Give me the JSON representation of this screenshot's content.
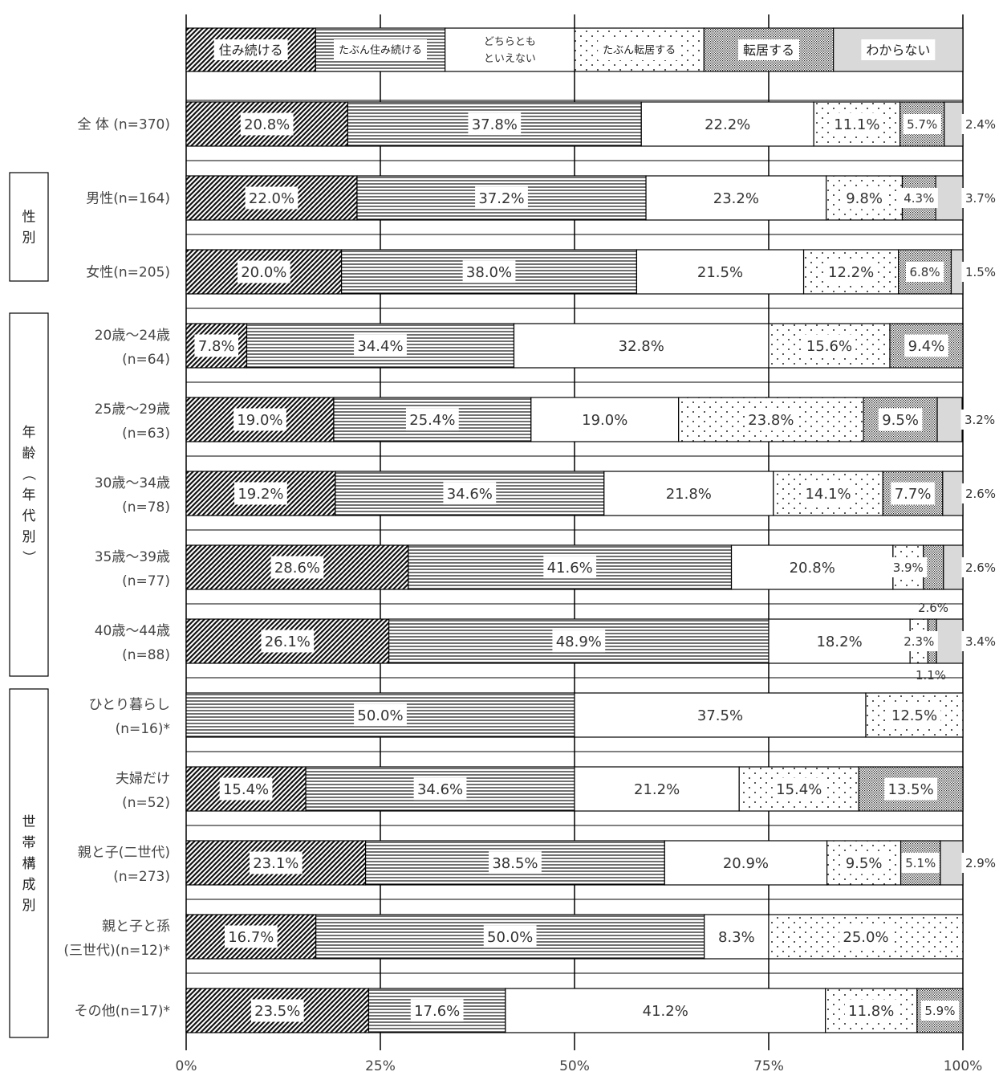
{
  "chart_data": {
    "type": "bar",
    "stacked": true,
    "orientation": "horizontal",
    "legend_placement": "top",
    "xlim": [
      0,
      100
    ],
    "x_ticks": [
      "0%",
      "25%",
      "50%",
      "75%",
      "100%"
    ],
    "legend": [
      {
        "name": "住み続ける",
        "pattern": "diagonal"
      },
      {
        "name": "たぶん住み続ける",
        "pattern": "horizontal"
      },
      {
        "name": "どちらとも\nといえない",
        "pattern": "blank"
      },
      {
        "name": "たぶん転居する",
        "pattern": "dots"
      },
      {
        "name": "転居する",
        "pattern": "dense"
      },
      {
        "name": "わからない",
        "pattern": "gray"
      }
    ],
    "groups": [
      {
        "label": "性別"
      },
      {
        "label": "年齢（年代別）"
      },
      {
        "label": "世帯構成別"
      }
    ],
    "rows": [
      {
        "label": [
          "全 体 (n=370)"
        ],
        "values": [
          20.8,
          37.8,
          22.2,
          11.1,
          5.7,
          2.4
        ],
        "labels": [
          "20.8%",
          "37.8%",
          "22.2%",
          "11.1%",
          "5.7%",
          "2.4%"
        ]
      },
      {
        "label": [
          "男性(n=164)"
        ],
        "values": [
          22.0,
          37.2,
          23.2,
          9.8,
          4.3,
          3.7
        ],
        "labels": [
          "22.0%",
          "37.2%",
          "23.2%",
          "9.8%",
          "4.3%",
          "3.7%"
        ]
      },
      {
        "label": [
          "女性(n=205)"
        ],
        "values": [
          20.0,
          38.0,
          21.5,
          12.2,
          6.8,
          1.5
        ],
        "labels": [
          "20.0%",
          "38.0%",
          "21.5%",
          "12.2%",
          "6.8%",
          "1.5%"
        ]
      },
      {
        "label": [
          "20歳～24歳",
          "(n=64)"
        ],
        "values": [
          7.8,
          34.4,
          32.8,
          15.6,
          9.4,
          0
        ],
        "labels": [
          "7.8%",
          "34.4%",
          "32.8%",
          "15.6%",
          "9.4%",
          ""
        ]
      },
      {
        "label": [
          "25歳～29歳",
          "(n=63)"
        ],
        "values": [
          19.0,
          25.4,
          19.0,
          23.8,
          9.5,
          3.2
        ],
        "labels": [
          "19.0%",
          "25.4%",
          "19.0%",
          "23.8%",
          "9.5%",
          "3.2%"
        ]
      },
      {
        "label": [
          "30歳～34歳",
          "(n=78)"
        ],
        "values": [
          19.2,
          34.6,
          21.8,
          14.1,
          7.7,
          2.6
        ],
        "labels": [
          "19.2%",
          "34.6%",
          "21.8%",
          "14.1%",
          "7.7%",
          "2.6%"
        ]
      },
      {
        "label": [
          "35歳～39歳",
          "(n=77)"
        ],
        "values": [
          28.6,
          41.6,
          20.8,
          3.9,
          2.6,
          2.6
        ],
        "labels": [
          "28.6%",
          "41.6%",
          "20.8%",
          "3.9%",
          "",
          "2.6%"
        ]
      },
      {
        "label": [
          "40歳～44歳",
          "(n=88)"
        ],
        "values": [
          26.1,
          48.9,
          18.2,
          2.3,
          1.1,
          3.4
        ],
        "labels": [
          "26.1%",
          "48.9%",
          "18.2%",
          "2.3%",
          "",
          "3.4%"
        ]
      },
      {
        "label": [
          "ひとり暮らし",
          "(n=16)*"
        ],
        "values": [
          0,
          50.0,
          37.5,
          12.5,
          0,
          0
        ],
        "labels": [
          "",
          "50.0%",
          "37.5%",
          "12.5%",
          "",
          ""
        ]
      },
      {
        "label": [
          "夫婦だけ",
          "(n=52)"
        ],
        "values": [
          15.4,
          34.6,
          21.2,
          15.4,
          13.5,
          0
        ],
        "labels": [
          "15.4%",
          "34.6%",
          "21.2%",
          "15.4%",
          "13.5%",
          ""
        ]
      },
      {
        "label": [
          "親と子(二世代)",
          "(n=273)"
        ],
        "values": [
          23.1,
          38.5,
          20.9,
          9.5,
          5.1,
          2.9
        ],
        "labels": [
          "23.1%",
          "38.5%",
          "20.9%",
          "9.5%",
          "5.1%",
          "2.9%"
        ]
      },
      {
        "label": [
          "親と子と孫",
          "(三世代)(n=12)*"
        ],
        "values": [
          16.7,
          50.0,
          8.3,
          25.0,
          0,
          0
        ],
        "labels": [
          "16.7%",
          "50.0%",
          "8.3%",
          "25.0%",
          "",
          ""
        ]
      },
      {
        "label": [
          "その他(n=17)*"
        ],
        "values": [
          23.5,
          17.6,
          41.2,
          11.8,
          5.9,
          0
        ],
        "labels": [
          "23.5%",
          "17.6%",
          "41.2%",
          "11.8%",
          "5.9%",
          ""
        ]
      }
    ],
    "annotations": [
      "2.6%",
      "1.1%"
    ]
  }
}
